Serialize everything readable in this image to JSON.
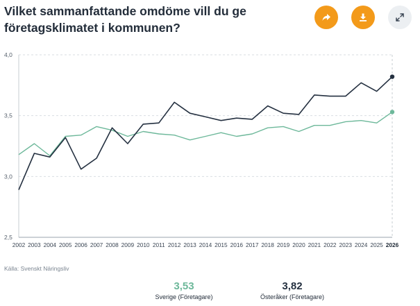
{
  "title": "Vilket sammanfattande omdöme vill du ge företagsklimatet i kommunen?",
  "actions": [
    {
      "name": "share-button",
      "icon": "share-arrow-icon"
    },
    {
      "name": "download-button",
      "icon": "download-icon"
    },
    {
      "name": "expand-button",
      "icon": "expand-icon"
    }
  ],
  "colors": {
    "accent": "#f39a1a",
    "sverige": "#6db89a",
    "osteraker": "#243040"
  },
  "source": "Källa: Svenskt Näringsliv",
  "summary": {
    "sverige": {
      "value": "3,53",
      "label": "Sverige (Företagare)"
    },
    "osteraker": {
      "value": "3,82",
      "label": "Österåker (Företagare)"
    }
  },
  "chart_data": {
    "type": "line",
    "x": [
      2002,
      2003,
      2004,
      2005,
      2006,
      2007,
      2008,
      2009,
      2010,
      2011,
      2012,
      2013,
      2014,
      2015,
      2016,
      2017,
      2018,
      2019,
      2020,
      2021,
      2022,
      2023,
      2024,
      2025,
      2026
    ],
    "x_tick_labels": [
      "2002",
      "2003",
      "2004",
      "2005",
      "2006",
      "2007",
      "2008",
      "2009",
      "2010",
      "2011",
      "2012",
      "2013",
      "2014",
      "2015",
      "2016",
      "2017",
      "2018",
      "2019",
      "2020",
      "2021",
      "2022",
      "2023",
      "2024",
      "2025",
      "2026"
    ],
    "highlight_x": "2026",
    "y_ticks": [
      "2,5",
      "3,0",
      "3,5",
      "4,0"
    ],
    "ylim": [
      2.5,
      4.0
    ],
    "grid": true,
    "series": [
      {
        "name": "Sverige (Företagare)",
        "color": "#6db89a",
        "values": [
          3.18,
          3.27,
          3.17,
          3.33,
          3.34,
          3.41,
          3.38,
          3.33,
          3.37,
          3.35,
          3.34,
          3.3,
          3.33,
          3.36,
          3.33,
          3.35,
          3.4,
          3.41,
          3.37,
          3.42,
          3.42,
          3.45,
          3.46,
          3.44,
          3.53
        ]
      },
      {
        "name": "Österåker (Företagare)",
        "color": "#243040",
        "values": [
          2.89,
          3.19,
          3.16,
          3.32,
          3.06,
          3.15,
          3.4,
          3.27,
          3.43,
          3.44,
          3.61,
          3.52,
          3.49,
          3.46,
          3.48,
          3.47,
          3.58,
          3.52,
          3.51,
          3.67,
          3.66,
          3.66,
          3.77,
          3.7,
          3.82
        ]
      }
    ]
  }
}
